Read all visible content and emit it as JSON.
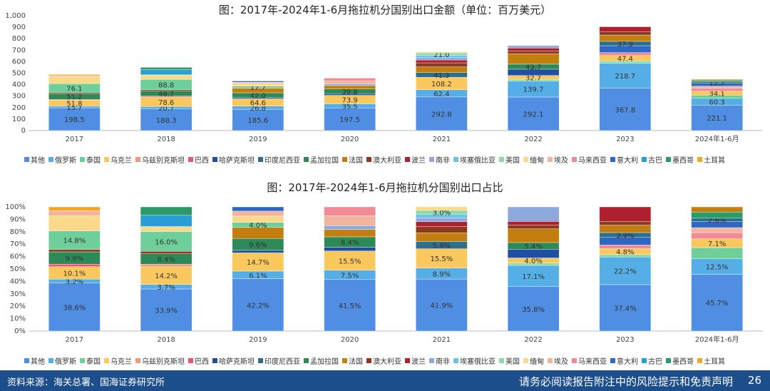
{
  "footer": {
    "source": "资料来源：海关总署、国海证券研究所",
    "disclaimer": "请务必阅读报告附注中的风险提示和免责声明",
    "page": "26"
  },
  "legend_items": [
    "其他",
    "俄罗斯",
    "泰国",
    "乌克兰",
    "乌兹别克斯坦",
    "巴西",
    "哈萨克斯坦",
    "印度尼西亚",
    "孟加拉国",
    "法国",
    "澳大利亚",
    "波兰",
    "南非",
    "埃塞俄比亚",
    "美国",
    "缅甸",
    "埃及",
    "马来西亚",
    "意大利",
    "古巴",
    "墨西哥",
    "土耳其"
  ],
  "colors": {
    "其他": "#4f8ee3",
    "俄罗斯": "#56aee6",
    "泰国": "#6fcf9a",
    "乌克兰": "#fbc85e",
    "乌兹别克斯坦": "#ee9b7d",
    "巴西": "#e8586a",
    "哈萨克斯坦": "#1e4fa3",
    "印度尼西亚": "#2d6e8a",
    "孟加拉国": "#2d8a56",
    "法国": "#c27f0f",
    "澳大利亚": "#8c3a1e",
    "波兰": "#b01f2e",
    "南非": "#8ea9dc",
    "埃塞俄比亚": "#6ec3e8",
    "美国": "#8ed9a8",
    "缅甸": "#fbd98a",
    "埃及": "#f2b49c",
    "马来西亚": "#f08a96",
    "意大利": "#2e66c4",
    "古巴": "#2a9fd6",
    "墨西哥": "#2a9a6a",
    "土耳其": "#f2a623"
  },
  "chart_data": [
    {
      "type": "bar",
      "title": "图：2017年-2024年1-6月拖拉机分国别出口金额（单位：百万美元）",
      "categories": [
        "2017",
        "2018",
        "2019",
        "2020",
        "2021",
        "2022",
        "2023",
        "2024年1-6月"
      ],
      "ylim": [
        0,
        1000
      ],
      "yticks": [
        "0",
        "100",
        "200",
        "300",
        "400",
        "500",
        "600",
        "700",
        "800",
        "900",
        "1,000"
      ],
      "legend_position": "bottom",
      "grid": false,
      "stacks": [
        {
          "category": "2017",
          "segments": [
            {
              "s": "其他",
              "v": 198.5,
              "label": "198.5"
            },
            {
              "s": "俄罗斯",
              "v": 15.7,
              "label": "15.7"
            },
            {
              "s": "乌克兰",
              "v": 51.8,
              "label": "51.8"
            },
            {
              "s": "巴西",
              "v": 5
            },
            {
              "s": "孟加拉国",
              "v": 51.2,
              "label": "51.2"
            },
            {
              "s": "澳大利亚",
              "v": 10
            },
            {
              "s": "泰国",
              "v": 76.1,
              "label": "76.1"
            },
            {
              "s": "缅甸",
              "v": 60
            },
            {
              "s": "埃及",
              "v": 10
            },
            {
              "s": "土耳其",
              "v": 10
            }
          ]
        },
        {
          "category": "2018",
          "segments": [
            {
              "s": "其他",
              "v": 188.3,
              "label": "188.3"
            },
            {
              "s": "俄罗斯",
              "v": 20.7,
              "label": "20.7"
            },
            {
              "s": "乌克兰",
              "v": 78.6,
              "label": "78.6"
            },
            {
              "s": "乌兹别克斯坦",
              "v": 12
            },
            {
              "s": "孟加拉国",
              "v": 46.7,
              "label": "46.7"
            },
            {
              "s": "澳大利亚",
              "v": 10
            },
            {
              "s": "泰国",
              "v": 88.8,
              "label": "88.8"
            },
            {
              "s": "缅甸",
              "v": 40
            },
            {
              "s": "古巴",
              "v": 45
            },
            {
              "s": "墨西哥",
              "v": 20
            }
          ]
        },
        {
          "category": "2019",
          "segments": [
            {
              "s": "其他",
              "v": 185.6,
              "label": "185.6"
            },
            {
              "s": "俄罗斯",
              "v": 26.8,
              "label": "26.8"
            },
            {
              "s": "乌克兰",
              "v": 64.6,
              "label": "64.6"
            },
            {
              "s": "哈萨克斯坦",
              "v": 10
            },
            {
              "s": "孟加拉国",
              "v": 42.0,
              "label": "42.0"
            },
            {
              "s": "法国",
              "v": 40
            },
            {
              "s": "泰国",
              "v": 17.7,
              "label": "17.7"
            },
            {
              "s": "缅甸",
              "v": 25
            },
            {
              "s": "埃及",
              "v": 10
            },
            {
              "s": "意大利",
              "v": 10
            }
          ]
        },
        {
          "category": "2020",
          "segments": [
            {
              "s": "其他",
              "v": 197.5,
              "label": "197.5"
            },
            {
              "s": "俄罗斯",
              "v": 35.5,
              "label": "35.5"
            },
            {
              "s": "乌克兰",
              "v": 73.9,
              "label": "73.9"
            },
            {
              "s": "哈萨克斯坦",
              "v": 15
            },
            {
              "s": "孟加拉国",
              "v": 39.8,
              "label": "39.8"
            },
            {
              "s": "法国",
              "v": 30
            },
            {
              "s": "南非",
              "v": 15
            },
            {
              "s": "埃及",
              "v": 25
            },
            {
              "s": "马来西亚",
              "v": 25
            }
          ]
        },
        {
          "category": "2021",
          "segments": [
            {
              "s": "其他",
              "v": 292.8,
              "label": "292.8"
            },
            {
              "s": "俄罗斯",
              "v": 62.4,
              "label": "62.4"
            },
            {
              "s": "乌克兰",
              "v": 108.2,
              "label": "108.2"
            },
            {
              "s": "印度尼西亚",
              "v": 41.3,
              "label": "41.3"
            },
            {
              "s": "法国",
              "v": 50
            },
            {
              "s": "澳大利亚",
              "v": 35
            },
            {
              "s": "波兰",
              "v": 25
            },
            {
              "s": "南非",
              "v": 20
            },
            {
              "s": "埃塞俄比亚",
              "v": 20
            },
            {
              "s": "美国",
              "v": 21.0,
              "label": "21.0"
            },
            {
              "s": "缅甸",
              "v": 9
            }
          ]
        },
        {
          "category": "2022",
          "segments": [
            {
              "s": "其他",
              "v": 292.1,
              "label": "292.1"
            },
            {
              "s": "俄罗斯",
              "v": 139.7,
              "label": "139.7"
            },
            {
              "s": "美国",
              "v": 15
            },
            {
              "s": "乌克兰",
              "v": 32.7,
              "label": "32.7"
            },
            {
              "s": "哈萨克斯坦",
              "v": 55
            },
            {
              "s": "孟加拉国",
              "v": 43.7,
              "label": "43.7"
            },
            {
              "s": "法国",
              "v": 90
            },
            {
              "s": "澳大利亚",
              "v": 25
            },
            {
              "s": "波兰",
              "v": 25
            },
            {
              "s": "南非",
              "v": 22
            }
          ]
        },
        {
          "category": "2023",
          "segments": [
            {
              "s": "其他",
              "v": 367.8,
              "label": "367.8"
            },
            {
              "s": "俄罗斯",
              "v": 218.7,
              "label": "218.7"
            },
            {
              "s": "美国",
              "v": 20
            },
            {
              "s": "乌克兰",
              "v": 47.4,
              "label": "47.4"
            },
            {
              "s": "马来西亚",
              "v": 25
            },
            {
              "s": "意大利",
              "v": 60
            },
            {
              "s": "印度尼西亚",
              "v": 37.9,
              "label": "37.9"
            },
            {
              "s": "法国",
              "v": 55
            },
            {
              "s": "澳大利亚",
              "v": 30
            },
            {
              "s": "波兰",
              "v": 42
            }
          ]
        },
        {
          "category": "2024年1-6月",
          "segments": [
            {
              "s": "其他",
              "v": 221.1,
              "label": "221.1"
            },
            {
              "s": "俄罗斯",
              "v": 60.3,
              "label": "60.3"
            },
            {
              "s": "泰国",
              "v": 28
            },
            {
              "s": "乌克兰",
              "v": 34.1,
              "label": "34.1"
            },
            {
              "s": "马来西亚",
              "v": 25
            },
            {
              "s": "埃及",
              "v": 18
            },
            {
              "s": "意大利",
              "v": 25
            },
            {
              "s": "印度尼西亚",
              "v": 12.7,
              "label": "12.7"
            },
            {
              "s": "墨西哥",
              "v": 12
            },
            {
              "s": "法国",
              "v": 10
            }
          ]
        }
      ]
    },
    {
      "type": "bar",
      "title": "图：2017年-2024年1-6月拖拉机分国别出口占比",
      "categories": [
        "2017",
        "2018",
        "2019",
        "2020",
        "2021",
        "2022",
        "2023",
        "2024年1-6月"
      ],
      "ylim": [
        0,
        100
      ],
      "yticks": [
        "0%",
        "10%",
        "20%",
        "30%",
        "40%",
        "50%",
        "60%",
        "70%",
        "80%",
        "90%",
        "100%"
      ],
      "legend_position": "bottom",
      "grid": false,
      "stacks": [
        {
          "category": "2017",
          "segments": [
            {
              "s": "其他",
              "v": 38.6,
              "label": "38.6%"
            },
            {
              "s": "俄罗斯",
              "v": 3.2,
              "label": "3.2%"
            },
            {
              "s": "乌克兰",
              "v": 10.1,
              "label": "10.1%"
            },
            {
              "s": "巴西",
              "v": 2
            },
            {
              "s": "孟加拉国",
              "v": 9.9,
              "label": "9.9%"
            },
            {
              "s": "澳大利亚",
              "v": 2
            },
            {
              "s": "泰国",
              "v": 14.8,
              "label": "14.8%"
            },
            {
              "s": "缅甸",
              "v": 12.4
            },
            {
              "s": "埃及",
              "v": 4
            },
            {
              "s": "土耳其",
              "v": 3
            }
          ]
        },
        {
          "category": "2018",
          "segments": [
            {
              "s": "其他",
              "v": 33.9,
              "label": "33.9%"
            },
            {
              "s": "俄罗斯",
              "v": 3.7,
              "label": "3.7%"
            },
            {
              "s": "乌克兰",
              "v": 14.2,
              "label": "14.2%"
            },
            {
              "s": "乌兹别克斯坦",
              "v": 2
            },
            {
              "s": "孟加拉国",
              "v": 8.4,
              "label": "8.4%"
            },
            {
              "s": "澳大利亚",
              "v": 2
            },
            {
              "s": "泰国",
              "v": 16.0,
              "label": "16.0%"
            },
            {
              "s": "缅甸",
              "v": 4
            },
            {
              "s": "古巴",
              "v": 9
            },
            {
              "s": "墨西哥",
              "v": 6.8
            }
          ]
        },
        {
          "category": "2019",
          "segments": [
            {
              "s": "其他",
              "v": 42.2,
              "label": "42.2%"
            },
            {
              "s": "俄罗斯",
              "v": 6.1,
              "label": "6.1%"
            },
            {
              "s": "乌克兰",
              "v": 14.7,
              "label": "14.7%"
            },
            {
              "s": "哈萨克斯坦",
              "v": 2
            },
            {
              "s": "孟加拉国",
              "v": 9.6,
              "label": "9.6%"
            },
            {
              "s": "法国",
              "v": 9
            },
            {
              "s": "泰国",
              "v": 4.0,
              "label": "4.0%"
            },
            {
              "s": "缅甸",
              "v": 5
            },
            {
              "s": "埃及",
              "v": 4
            },
            {
              "s": "意大利",
              "v": 3.4
            }
          ]
        },
        {
          "category": "2020",
          "segments": [
            {
              "s": "其他",
              "v": 41.5,
              "label": "41.5%"
            },
            {
              "s": "俄罗斯",
              "v": 7.5,
              "label": "7.5%"
            },
            {
              "s": "乌克兰",
              "v": 15.5,
              "label": "15.5%"
            },
            {
              "s": "哈萨克斯坦",
              "v": 3
            },
            {
              "s": "孟加拉国",
              "v": 8.4,
              "label": "8.4%"
            },
            {
              "s": "法国",
              "v": 6
            },
            {
              "s": "南非",
              "v": 3
            },
            {
              "s": "埃及",
              "v": 8
            },
            {
              "s": "马来西亚",
              "v": 7.1
            }
          ]
        },
        {
          "category": "2021",
          "segments": [
            {
              "s": "其他",
              "v": 41.9,
              "label": "41.9%"
            },
            {
              "s": "俄罗斯",
              "v": 8.9,
              "label": "8.9%"
            },
            {
              "s": "乌克兰",
              "v": 15.5,
              "label": "15.5%"
            },
            {
              "s": "印度尼西亚",
              "v": 5.9,
              "label": "5.9%"
            },
            {
              "s": "法国",
              "v": 7
            },
            {
              "s": "澳大利亚",
              "v": 5
            },
            {
              "s": "波兰",
              "v": 4
            },
            {
              "s": "南非",
              "v": 3
            },
            {
              "s": "埃塞俄比亚",
              "v": 3
            },
            {
              "s": "美国",
              "v": 3.0,
              "label": "3.0%"
            },
            {
              "s": "缅甸",
              "v": 2.8
            }
          ]
        },
        {
          "category": "2022",
          "segments": [
            {
              "s": "其他",
              "v": 35.8,
              "label": "35.8%"
            },
            {
              "s": "俄罗斯",
              "v": 17.1,
              "label": "17.1%"
            },
            {
              "s": "美国",
              "v": 2
            },
            {
              "s": "乌克兰",
              "v": 4.0,
              "label": "4.0%"
            },
            {
              "s": "哈萨克斯坦",
              "v": 7
            },
            {
              "s": "孟加拉国",
              "v": 5.4,
              "label": "5.4%"
            },
            {
              "s": "法国",
              "v": 11
            },
            {
              "s": "澳大利亚",
              "v": 3
            },
            {
              "s": "波兰",
              "v": 3
            },
            {
              "s": "南非",
              "v": 11.7
            }
          ]
        },
        {
          "category": "2023",
          "segments": [
            {
              "s": "其他",
              "v": 37.4,
              "label": "37.4%"
            },
            {
              "s": "俄罗斯",
              "v": 22.2,
              "label": "22.2%"
            },
            {
              "s": "美国",
              "v": 2
            },
            {
              "s": "乌克兰",
              "v": 4.8,
              "label": "4.8%"
            },
            {
              "s": "马来西亚",
              "v": 3
            },
            {
              "s": "意大利",
              "v": 6
            },
            {
              "s": "印度尼西亚",
              "v": 3.9,
              "label": "3.9%"
            },
            {
              "s": "法国",
              "v": 6
            },
            {
              "s": "澳大利亚",
              "v": 3
            },
            {
              "s": "波兰",
              "v": 11.7
            }
          ]
        },
        {
          "category": "2024年1-6月",
          "segments": [
            {
              "s": "其他",
              "v": 45.7,
              "label": "45.7%"
            },
            {
              "s": "俄罗斯",
              "v": 12.5,
              "label": "12.5%"
            },
            {
              "s": "泰国",
              "v": 9
            },
            {
              "s": "乌克兰",
              "v": 7.1,
              "label": "7.1%"
            },
            {
              "s": "马来西亚",
              "v": 5
            },
            {
              "s": "埃及",
              "v": 4
            },
            {
              "s": "意大利",
              "v": 5
            },
            {
              "s": "印度尼西亚",
              "v": 2.6,
              "label": "2.6%"
            },
            {
              "s": "墨西哥",
              "v": 5
            },
            {
              "s": "法国",
              "v": 4.1
            }
          ]
        }
      ]
    }
  ]
}
